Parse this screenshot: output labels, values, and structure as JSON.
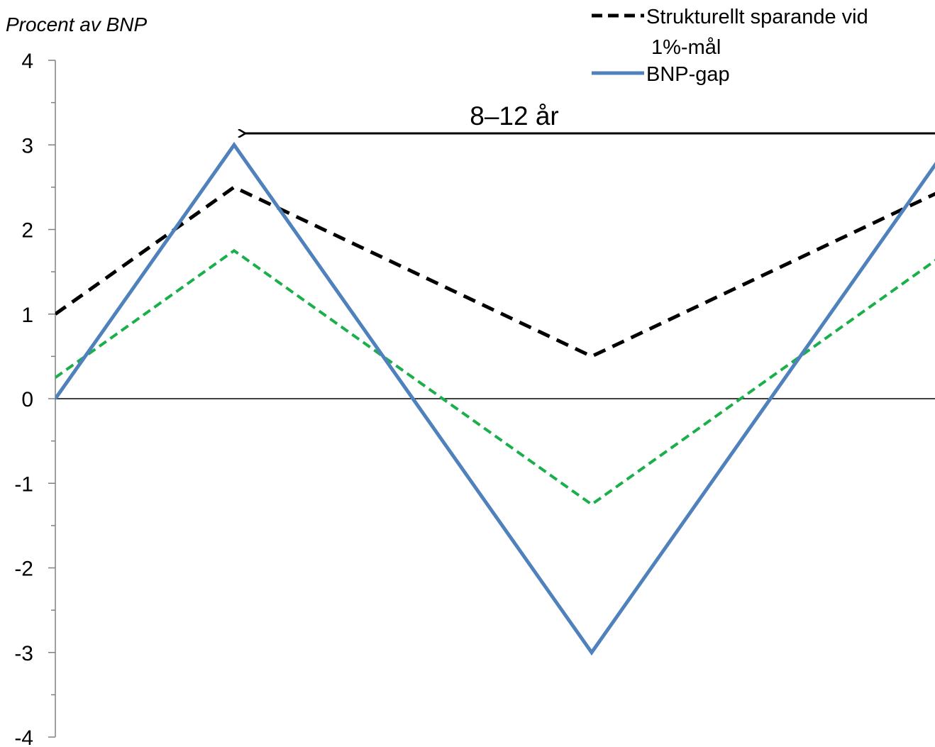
{
  "chart_data": {
    "type": "line",
    "ylabel": "Procent av BNP",
    "ylim": [
      -4,
      4
    ],
    "yticks": [
      "4",
      "3",
      "2",
      "1",
      "0",
      "-1",
      "-2",
      "-3",
      "-4"
    ],
    "x": [
      0,
      1,
      2,
      3,
      4,
      5
    ],
    "series": [
      {
        "key": "strukturellt",
        "name": "Strukturellt sparande vid 1%-mål",
        "color": "#000000",
        "style": "dashed",
        "values": [
          1.0,
          2.5,
          1.5,
          0.5,
          1.5,
          2.5
        ]
      },
      {
        "key": "green",
        "name": "",
        "color": "#1AAF4B",
        "style": "dashed",
        "values": [
          0.25,
          1.75,
          0.25,
          -1.25,
          0.25,
          1.75
        ]
      },
      {
        "key": "bnpgap",
        "name": "BNP-gap",
        "color": "#4F81BD",
        "style": "solid",
        "values": [
          0.0,
          3.0,
          0.0,
          -3.0,
          0.0,
          3.0
        ]
      }
    ],
    "legend": {
      "placement": "top-right",
      "entries": [
        {
          "series": "strukturellt",
          "line1": "Strukturellt sparande vid",
          "line2": "1%-mål"
        },
        {
          "series": "bnpgap",
          "line1": "BNP-gap"
        }
      ]
    },
    "annotation": {
      "text": "8–12 år",
      "type": "double-arrow",
      "from_x": 1,
      "to_x": 5,
      "y": 3.15
    }
  }
}
